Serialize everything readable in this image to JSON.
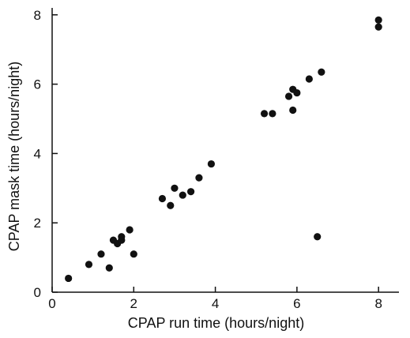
{
  "chart_data": {
    "type": "scatter",
    "title": "",
    "xlabel": "CPAP run time (hours/night)",
    "ylabel": "CPAP mask time (hours/night)",
    "xlim": [
      0,
      8.5
    ],
    "ylim": [
      0,
      8.2
    ],
    "x_ticks": [
      0,
      2,
      4,
      6,
      8
    ],
    "y_ticks": [
      0,
      2,
      4,
      6,
      8
    ],
    "grid": false,
    "marker_color": "#111111",
    "points": [
      {
        "x": 0.4,
        "y": 0.4
      },
      {
        "x": 0.9,
        "y": 0.8
      },
      {
        "x": 1.2,
        "y": 1.1
      },
      {
        "x": 1.4,
        "y": 0.7
      },
      {
        "x": 1.5,
        "y": 1.5
      },
      {
        "x": 1.6,
        "y": 1.4
      },
      {
        "x": 1.7,
        "y": 1.5
      },
      {
        "x": 1.7,
        "y": 1.6
      },
      {
        "x": 1.9,
        "y": 1.8
      },
      {
        "x": 2.0,
        "y": 1.1
      },
      {
        "x": 2.7,
        "y": 2.7
      },
      {
        "x": 2.9,
        "y": 2.5
      },
      {
        "x": 3.0,
        "y": 3.0
      },
      {
        "x": 3.2,
        "y": 2.8
      },
      {
        "x": 3.4,
        "y": 2.9
      },
      {
        "x": 3.6,
        "y": 3.3
      },
      {
        "x": 3.9,
        "y": 3.7
      },
      {
        "x": 5.2,
        "y": 5.15
      },
      {
        "x": 5.4,
        "y": 5.15
      },
      {
        "x": 5.8,
        "y": 5.65
      },
      {
        "x": 5.9,
        "y": 5.85
      },
      {
        "x": 5.9,
        "y": 5.25
      },
      {
        "x": 6.0,
        "y": 5.75
      },
      {
        "x": 6.3,
        "y": 6.15
      },
      {
        "x": 6.5,
        "y": 1.6
      },
      {
        "x": 6.6,
        "y": 6.35
      },
      {
        "x": 8.0,
        "y": 7.85
      },
      {
        "x": 8.0,
        "y": 7.65
      }
    ]
  }
}
